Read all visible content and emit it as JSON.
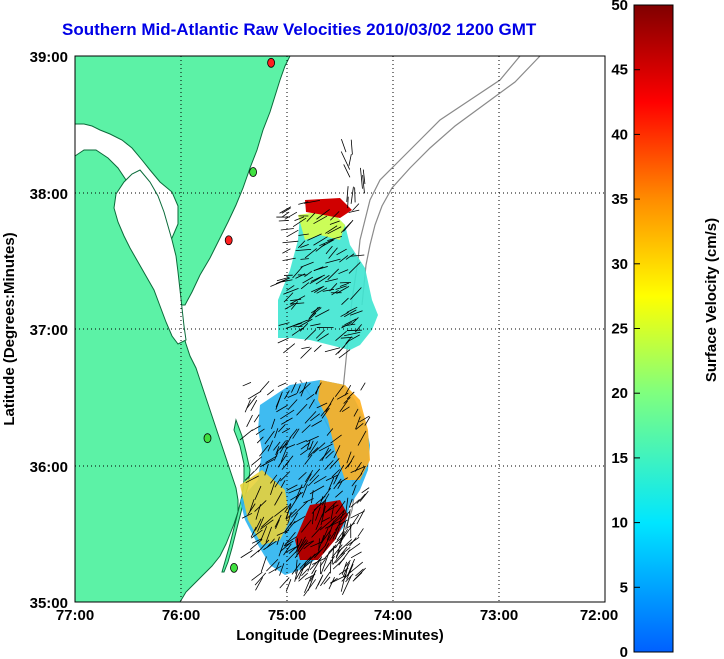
{
  "title": "Southern Mid-Atlantic Raw Velocities 2010/03/02 1200 GMT",
  "x_axis": {
    "label": "Longitude (Degrees:Minutes)",
    "ticks": [
      "77:00",
      "76:00",
      "75:00",
      "74:00",
      "73:00",
      "72:00"
    ],
    "range": [
      -77,
      -72
    ]
  },
  "y_axis": {
    "label": "Latitude (Degrees:Minutes)",
    "ticks": [
      "35:00",
      "36:00",
      "37:00",
      "38:00",
      "39:00"
    ],
    "range": [
      35,
      39
    ]
  },
  "colorbar": {
    "label": "Surface Velocity (cm/s)",
    "ticks": [
      "0",
      "5",
      "10",
      "15",
      "20",
      "25",
      "30",
      "35",
      "40",
      "45",
      "50"
    ],
    "range": [
      0,
      50
    ],
    "colormap": [
      "#0060ff",
      "#00e6ff",
      "#7fff7f",
      "#ffff00",
      "#ff7f00",
      "#ff0000",
      "#800000"
    ]
  },
  "colors": {
    "land": "#5cf2a6",
    "water": "#ffffff",
    "bathymetry": "#8a8a8a",
    "grid": "#000000",
    "title": "#0000e6"
  },
  "grid": "dotted",
  "map_elements": {
    "land": "coastline",
    "bathymetry": "contours",
    "current_vectors": "arrows",
    "station_markers": "markers"
  },
  "stations": [
    {
      "lon": -75.15,
      "lat": 38.95,
      "color": "#ff2020"
    },
    {
      "lon": -75.32,
      "lat": 38.15,
      "color": "#40e040"
    },
    {
      "lon": -75.55,
      "lat": 37.65,
      "color": "#ff2020"
    },
    {
      "lon": -75.75,
      "lat": 36.2,
      "color": "#40e040"
    },
    {
      "lon": -75.5,
      "lat": 35.25,
      "color": "#40e040"
    }
  ]
}
